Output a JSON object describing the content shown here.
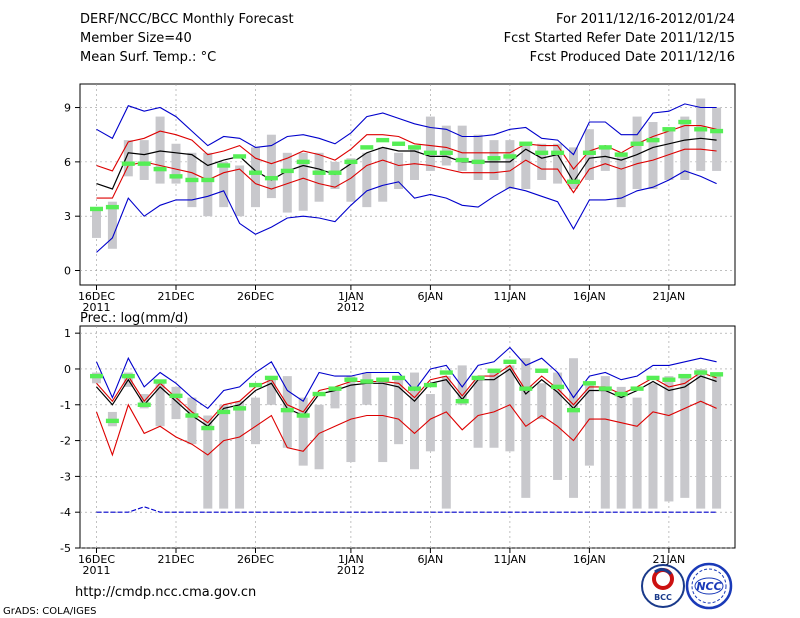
{
  "header": {
    "title": "DERF/NCC/BCC Monthly Forecast",
    "member_size": "Member Size=40",
    "variable": "Mean Surf. Temp.: °C",
    "period": "For 2011/12/16-2012/01/24",
    "started": "Fcst Started Refer Date 2011/12/15",
    "produced": "Fcst Produced Date 2011/12/16"
  },
  "footer": {
    "url": "http://cmdp.ncc.cma.gov.cn",
    "credit": "GrADS: COLA/IGES",
    "logo_bcc": "BCC",
    "logo_ncc": "NCC"
  },
  "x_axis": {
    "tick_days": [
      0,
      5,
      10,
      16,
      21,
      26,
      31,
      36
    ],
    "tick_labels": [
      "16DEC",
      "21DEC",
      "26DEC",
      "1JAN",
      "6JAN",
      "11JAN",
      "16JAN",
      "21JAN"
    ],
    "year_labels": [
      {
        "day": 0,
        "label": "2011"
      },
      {
        "day": 16,
        "label": "2012"
      }
    ]
  },
  "colors": {
    "box": "#c8c8cc",
    "median": "#55ee55",
    "mean": "#000000",
    "sd": "#dd0000",
    "extreme": "#0000cc"
  },
  "chart_data": [
    {
      "type": "line",
      "title": "Mean Surf. Temp.: °C",
      "ylabel": "°C",
      "ylim": [
        -0.8,
        10.3
      ],
      "yticks": [
        0,
        3,
        6,
        9
      ],
      "days": 40,
      "series": [
        {
          "name": "box_top",
          "values": [
            3.5,
            3.8,
            7.2,
            7.2,
            8.5,
            7.0,
            6.5,
            6.5,
            6.0,
            5.8,
            6.8,
            7.5,
            6.5,
            6.5,
            6.5,
            6.0,
            6.2,
            6.5,
            6.8,
            6.5,
            6.8,
            8.5,
            8.0,
            8.0,
            7.5,
            7.2,
            7.2,
            7.0,
            7.0,
            7.0,
            6.8,
            7.8,
            6.8,
            6.5,
            8.5,
            8.2,
            7.8,
            8.5,
            9.5,
            9.0
          ]
        },
        {
          "name": "box_bottom",
          "values": [
            1.8,
            1.2,
            5.2,
            5.0,
            4.8,
            4.8,
            3.5,
            3.0,
            3.5,
            3.0,
            3.5,
            4.0,
            3.2,
            3.3,
            3.8,
            4.5,
            3.8,
            3.5,
            3.8,
            4.5,
            5.0,
            5.5,
            5.8,
            5.5,
            5.0,
            5.0,
            4.5,
            4.5,
            5.0,
            4.8,
            4.5,
            5.0,
            5.5,
            3.5,
            4.5,
            4.5,
            5.0,
            5.0,
            5.5,
            5.5
          ]
        },
        {
          "name": "median",
          "values": [
            3.4,
            3.5,
            5.9,
            5.9,
            5.6,
            5.2,
            5.0,
            5.0,
            5.8,
            6.3,
            5.4,
            5.1,
            5.5,
            6.0,
            5.4,
            5.4,
            6.0,
            6.8,
            7.2,
            7.0,
            6.8,
            6.5,
            6.5,
            6.1,
            6.0,
            6.2,
            6.3,
            7.0,
            6.5,
            6.5,
            4.9,
            6.5,
            6.8,
            6.4,
            7.0,
            7.2,
            7.8,
            8.2,
            7.8,
            7.7
          ]
        },
        {
          "name": "ensemble_mean",
          "values": [
            4.8,
            4.5,
            6.5,
            6.4,
            6.6,
            6.5,
            6.4,
            5.8,
            6.1,
            6.3,
            5.5,
            5.0,
            5.5,
            5.8,
            5.6,
            5.3,
            5.9,
            6.5,
            6.8,
            6.6,
            6.6,
            6.3,
            6.3,
            6.0,
            6.0,
            6.0,
            6.0,
            6.7,
            6.2,
            6.4,
            4.9,
            6.2,
            6.3,
            6.1,
            6.4,
            6.8,
            7.0,
            7.2,
            7.3,
            7.2
          ]
        },
        {
          "name": "mean_plus_sd",
          "values": [
            5.8,
            5.5,
            7.1,
            7.3,
            7.7,
            7.5,
            7.2,
            6.4,
            6.6,
            6.9,
            6.2,
            5.9,
            6.2,
            6.6,
            6.4,
            6.1,
            6.7,
            7.5,
            7.5,
            7.4,
            7.0,
            6.9,
            6.8,
            6.5,
            6.5,
            6.5,
            6.5,
            7.0,
            6.9,
            6.9,
            5.6,
            6.6,
            6.9,
            6.5,
            7.0,
            7.4,
            7.7,
            8.0,
            8.0,
            7.8
          ]
        },
        {
          "name": "mean_minus_sd",
          "values": [
            4.0,
            4.0,
            5.8,
            6.0,
            5.8,
            5.6,
            5.4,
            5.0,
            5.4,
            5.6,
            4.8,
            4.5,
            4.8,
            5.1,
            4.8,
            4.6,
            5.1,
            5.8,
            6.1,
            5.8,
            5.9,
            5.8,
            5.6,
            5.4,
            5.4,
            5.4,
            5.5,
            6.1,
            5.6,
            5.6,
            4.3,
            5.6,
            5.9,
            5.6,
            5.9,
            6.1,
            6.4,
            6.7,
            6.7,
            6.6
          ]
        },
        {
          "name": "max",
          "values": [
            7.8,
            7.3,
            9.1,
            8.8,
            9.0,
            8.5,
            7.7,
            6.9,
            7.4,
            7.3,
            6.8,
            6.9,
            7.4,
            7.5,
            7.3,
            7.0,
            7.6,
            8.5,
            8.7,
            8.4,
            8.1,
            7.9,
            7.8,
            7.4,
            7.4,
            7.5,
            7.8,
            7.9,
            7.3,
            7.2,
            6.4,
            8.2,
            8.2,
            7.5,
            7.5,
            8.7,
            8.8,
            9.2,
            9.0,
            9.0
          ]
        },
        {
          "name": "min",
          "values": [
            1.0,
            1.8,
            4.0,
            3.0,
            3.6,
            3.9,
            3.9,
            4.1,
            4.4,
            2.6,
            2.0,
            2.4,
            2.9,
            3.0,
            2.9,
            2.7,
            3.6,
            4.4,
            4.7,
            4.9,
            4.0,
            4.2,
            4.0,
            3.6,
            3.5,
            4.1,
            4.6,
            4.4,
            4.1,
            3.8,
            2.3,
            3.9,
            3.9,
            4.0,
            4.4,
            4.6,
            5.0,
            5.5,
            5.2,
            4.8
          ]
        }
      ]
    },
    {
      "type": "line",
      "title": "Prec.: log(mm/d)",
      "ylabel": "log(mm/d)",
      "ylim": [
        -5,
        1.2
      ],
      "yticks": [
        -5,
        -4,
        -3,
        -2,
        -1,
        0,
        1
      ],
      "days": 40,
      "series": [
        {
          "name": "box_top",
          "values": [
            -0.1,
            -1.2,
            -0.1,
            -0.7,
            -0.4,
            -0.5,
            -0.8,
            -1.3,
            -1.0,
            -0.9,
            -0.8,
            -0.3,
            -0.2,
            -0.8,
            -1.0,
            -0.5,
            -0.2,
            -0.1,
            -0.3,
            -0.2,
            -0.1,
            -0.7,
            -0.2,
            0.1,
            -0.2,
            0.0,
            0.1,
            0.3,
            -0.4,
            -0.1,
            0.3,
            -0.4,
            -0.2,
            -0.5,
            -0.8,
            -0.4,
            -0.2,
            -0.2,
            0.0,
            -0.2
          ]
        },
        {
          "name": "box_bottom",
          "values": [
            -0.4,
            -1.6,
            -0.5,
            -1.1,
            -1.6,
            -1.4,
            -2.1,
            -3.9,
            -3.9,
            -3.9,
            -2.1,
            -1.0,
            -2.2,
            -2.7,
            -2.8,
            -1.1,
            -2.6,
            -1.0,
            -2.6,
            -2.1,
            -2.8,
            -2.3,
            -3.9,
            -1.0,
            -2.2,
            -2.2,
            -2.3,
            -3.6,
            -1.4,
            -3.1,
            -3.6,
            -2.7,
            -3.9,
            -3.9,
            -3.9,
            -3.9,
            -3.7,
            -3.6,
            -3.9,
            -3.9
          ]
        },
        {
          "name": "median",
          "values": [
            -0.2,
            -1.45,
            -0.2,
            -1.0,
            -0.35,
            -0.75,
            -1.3,
            -1.65,
            -1.2,
            -1.1,
            -0.45,
            -0.25,
            -1.15,
            -1.3,
            -0.7,
            -0.55,
            -0.3,
            -0.35,
            -0.3,
            -0.25,
            -0.55,
            -0.45,
            -0.1,
            -0.9,
            -0.25,
            -0.05,
            0.2,
            -0.55,
            -0.05,
            -0.5,
            -1.15,
            -0.4,
            -0.55,
            -0.7,
            -0.55,
            -0.25,
            -0.3,
            -0.2,
            -0.1,
            -0.15
          ]
        },
        {
          "name": "ensemble_mean",
          "values": [
            -0.5,
            -1.0,
            -0.3,
            -1.0,
            -0.5,
            -0.9,
            -1.3,
            -1.6,
            -1.1,
            -1.0,
            -0.6,
            -0.4,
            -1.1,
            -1.3,
            -0.7,
            -0.6,
            -0.45,
            -0.4,
            -0.4,
            -0.5,
            -0.9,
            -0.4,
            -0.3,
            -0.85,
            -0.3,
            -0.3,
            0.0,
            -0.7,
            -0.3,
            -0.65,
            -1.1,
            -0.6,
            -0.6,
            -0.8,
            -0.6,
            -0.35,
            -0.6,
            -0.5,
            -0.2,
            -0.35
          ]
        },
        {
          "name": "mean_plus_sd",
          "values": [
            -0.4,
            -0.9,
            -0.2,
            -0.9,
            -0.4,
            -0.8,
            -1.2,
            -1.5,
            -1.0,
            -0.9,
            -0.5,
            -0.3,
            -1.0,
            -1.2,
            -0.6,
            -0.5,
            -0.35,
            -0.35,
            -0.35,
            -0.4,
            -0.8,
            -0.3,
            -0.2,
            -0.75,
            -0.2,
            -0.2,
            0.1,
            -0.6,
            -0.2,
            -0.55,
            -1.0,
            -0.5,
            -0.5,
            -0.7,
            -0.5,
            -0.25,
            -0.5,
            -0.4,
            -0.1,
            -0.25
          ]
        },
        {
          "name": "mean_minus_sd",
          "values": [
            -1.2,
            -2.4,
            -1.0,
            -1.8,
            -1.6,
            -1.9,
            -2.1,
            -2.4,
            -2.0,
            -1.9,
            -1.6,
            -1.3,
            -2.2,
            -2.3,
            -1.8,
            -1.6,
            -1.4,
            -1.3,
            -1.3,
            -1.4,
            -1.8,
            -1.4,
            -1.2,
            -1.7,
            -1.3,
            -1.2,
            -1.0,
            -1.6,
            -1.3,
            -1.6,
            -2.0,
            -1.4,
            -1.4,
            -1.5,
            -1.6,
            -1.2,
            -1.3,
            -1.1,
            -0.9,
            -1.1
          ]
        },
        {
          "name": "max",
          "values": [
            0.2,
            -0.8,
            0.3,
            -0.5,
            -0.1,
            -0.4,
            -0.8,
            -1.1,
            -0.6,
            -0.5,
            -0.1,
            0.2,
            -0.6,
            -0.9,
            -0.1,
            -0.2,
            -0.2,
            -0.1,
            -0.1,
            -0.1,
            -0.6,
            0.0,
            0.1,
            -0.5,
            0.1,
            0.2,
            0.6,
            0.1,
            0.3,
            -0.1,
            -0.8,
            -0.2,
            -0.1,
            -0.3,
            -0.2,
            0.1,
            0.1,
            0.2,
            0.3,
            0.2
          ]
        },
        {
          "name": "min",
          "values": [
            -4,
            -4,
            -4,
            -3.85,
            -4,
            -4,
            -4,
            -4,
            -4,
            -4,
            -4,
            -4,
            -4,
            -4,
            -4,
            -4,
            -4,
            -4,
            -4,
            -4,
            -4,
            -4,
            -4,
            -4,
            -4,
            -4,
            -4,
            -4,
            -4,
            -4,
            -4,
            -4,
            -4,
            -4,
            -4,
            -4,
            -4,
            -4,
            -4,
            -4
          ]
        }
      ]
    }
  ]
}
